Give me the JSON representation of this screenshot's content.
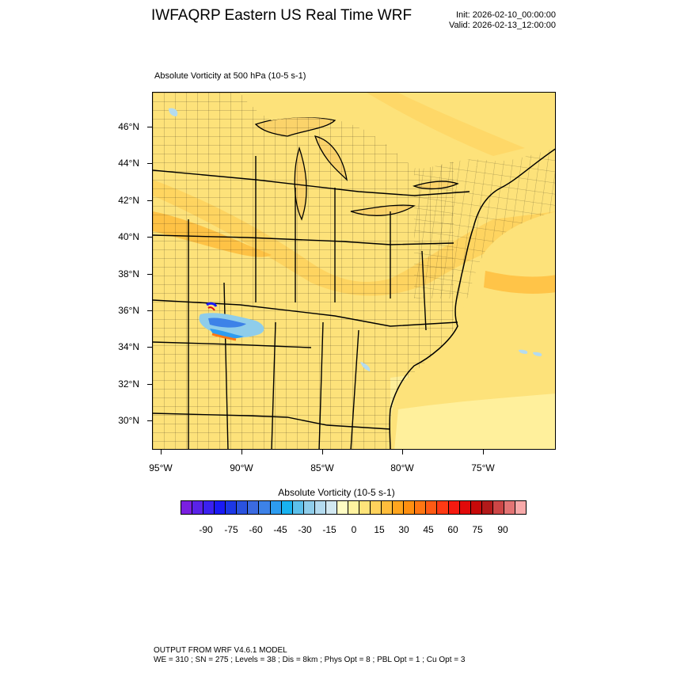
{
  "header": {
    "title": "IWFAQRP Eastern US Real Time WRF",
    "init": "Init: 2026-02-10_00:00:00",
    "valid": "Valid: 2026-02-13_12:00:00"
  },
  "map": {
    "field_title": "Absolute Vorticity at 500 hPa   (10-5 s-1)",
    "lat_labels": [
      "46°N",
      "44°N",
      "42°N",
      "40°N",
      "38°N",
      "36°N",
      "34°N",
      "32°N",
      "30°N"
    ],
    "lon_labels": [
      "95°W",
      "90°W",
      "85°W",
      "80°W",
      "75°W"
    ],
    "base_color": "#fde27a"
  },
  "colorbar": {
    "title": "Absolute Vorticity  (10-5 s-1)",
    "labels": [
      "-90",
      "-75",
      "-60",
      "-45",
      "-30",
      "-15",
      "0",
      "15",
      "30",
      "45",
      "60",
      "75",
      "90"
    ],
    "colors": [
      "#7a1fe0",
      "#5a22e8",
      "#3b21f0",
      "#1a1af5",
      "#1c37e6",
      "#2a52de",
      "#3b6ae0",
      "#3d82e8",
      "#2d9cf0",
      "#18b2f0",
      "#5cbfea",
      "#8fcdea",
      "#b4dbef",
      "#d2e8f1",
      "#fffcc4",
      "#fff2a0",
      "#ffe47a",
      "#ffd25c",
      "#ffbd3c",
      "#ffa51e",
      "#ff8f10",
      "#ff7612",
      "#ff5a14",
      "#ff3a14",
      "#f51a10",
      "#e10a0a",
      "#c70a0a",
      "#b21a1a",
      "#cc4646",
      "#e37474",
      "#f8aaaa"
    ]
  },
  "footer": {
    "line1": "OUTPUT FROM WRF V4.6.1 MODEL",
    "line2": "WE = 310 ; SN = 275 ; Levels = 38 ; Dis = 8km ; Phys Opt = 8 ; PBL Opt = 1 ; Cu Opt = 3"
  }
}
